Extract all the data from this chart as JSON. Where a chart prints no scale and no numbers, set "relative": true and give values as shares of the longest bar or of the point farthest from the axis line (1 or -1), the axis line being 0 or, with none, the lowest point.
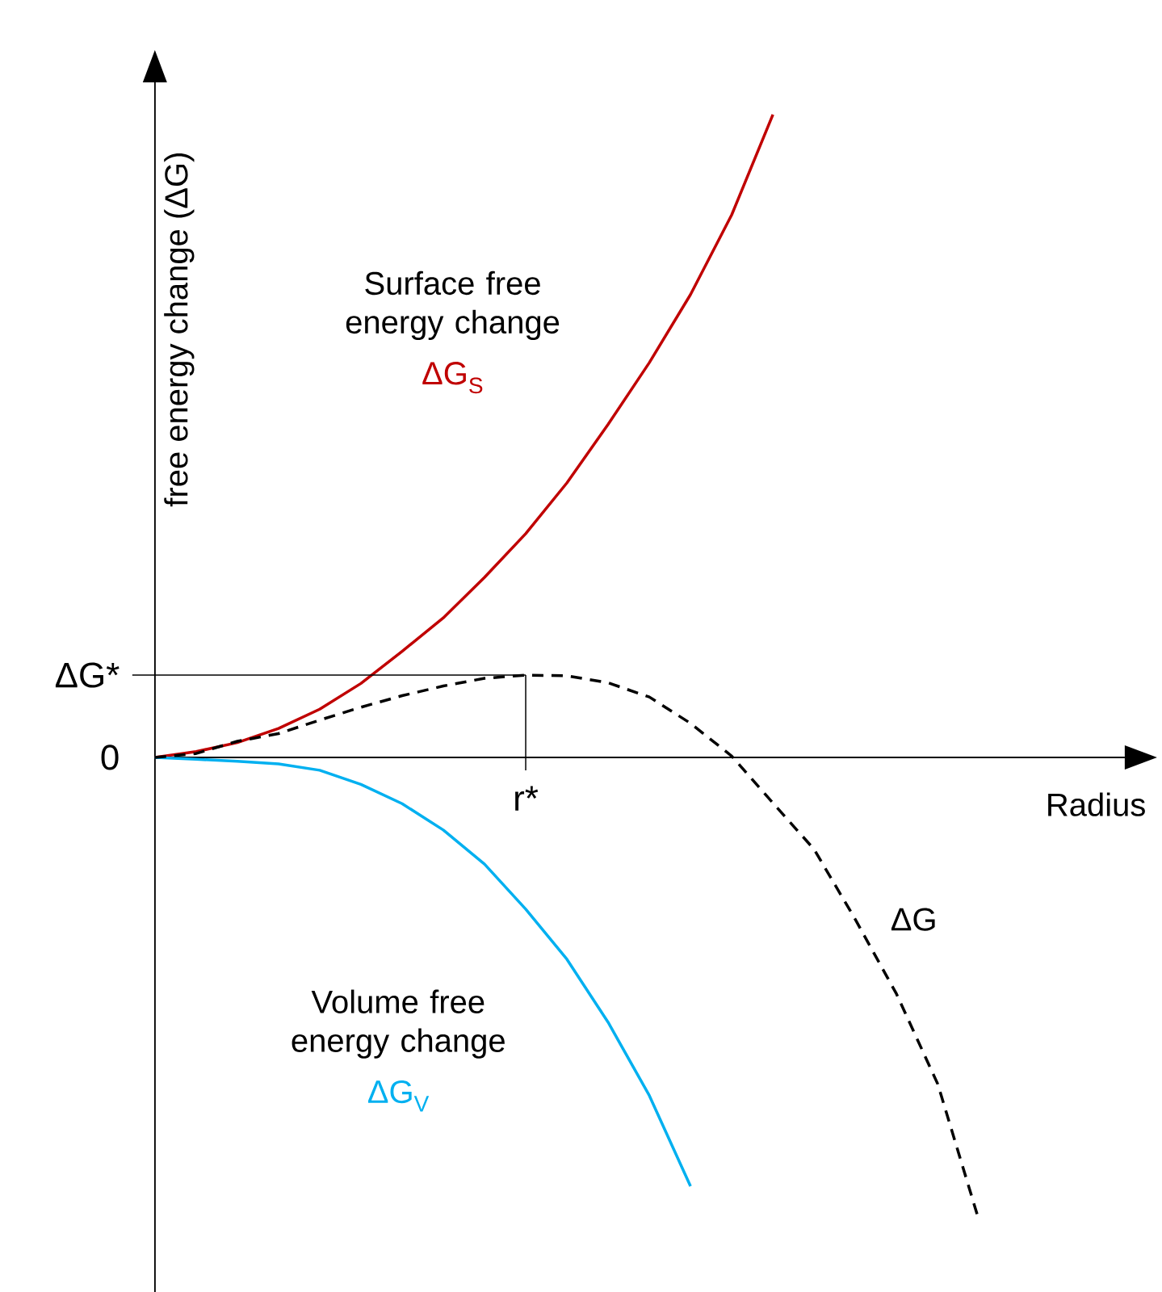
{
  "chart_data": {
    "type": "line",
    "relative": true,
    "xlabel": "Radius",
    "ylabel": "free energy change (ΔG)",
    "categories": [
      null,
      null,
      null,
      null,
      null,
      null,
      null,
      null,
      null,
      null,
      null,
      null,
      null,
      null,
      null,
      null,
      null,
      null,
      null,
      null,
      null
    ],
    "annotations": [
      "Surface free energy change",
      "Volume free energy change",
      "r*",
      "ΔG*",
      "0"
    ],
    "series": [
      {
        "name": "ΔG$_{S}$",
        "color": "#c00000",
        "line_style": "solid",
        "values": [
          0,
          0.009,
          0.023,
          0.045,
          0.075,
          0.115,
          0.165,
          0.217,
          0.28,
          0.348,
          0.427,
          0.518,
          0.614,
          0.72,
          0.844,
          1.0,
          null,
          null,
          null,
          null,
          null
        ]
      },
      {
        "name": "ΔG$_{V}$",
        "color": "#00b0f0",
        "line_style": "solid",
        "values": [
          0,
          -0.003,
          -0.006,
          -0.01,
          -0.02,
          -0.042,
          -0.072,
          -0.113,
          -0.166,
          -0.236,
          -0.314,
          -0.412,
          -0.526,
          -0.667,
          null,
          null,
          null,
          null,
          null,
          null,
          null
        ]
      },
      {
        "name": "ΔG",
        "color": "#000000",
        "line_style": "dashed",
        "values": [
          0,
          0.006,
          0.025,
          0.037,
          0.058,
          0.078,
          0.096,
          0.111,
          0.123,
          0.128,
          0.127,
          0.116,
          0.094,
          0.053,
          0.002,
          -0.071,
          -0.143,
          -0.252,
          -0.368,
          -0.508,
          -0.72
        ]
      }
    ]
  }
}
